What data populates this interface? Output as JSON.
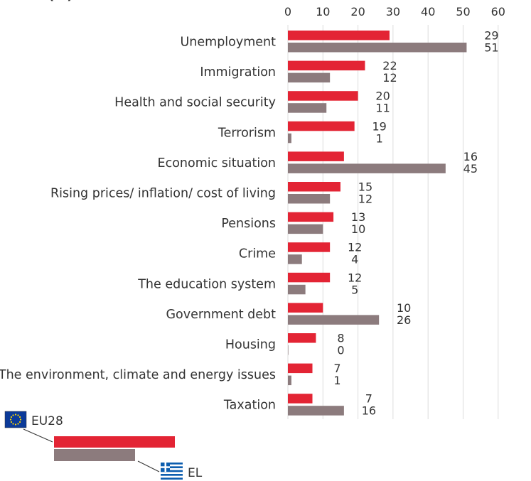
{
  "chart_data": {
    "type": "bar",
    "orientation": "horizontal",
    "header_fragment": "(%)",
    "xlim": [
      0,
      60
    ],
    "xticks": [
      0,
      10,
      20,
      30,
      40,
      50,
      60
    ],
    "grid": true,
    "categories": [
      "Unemployment",
      "Immigration",
      "Health and social security",
      "Terrorism",
      "Economic situation",
      "Rising prices/ inflation/ cost of living",
      "Pensions",
      "Crime",
      "The education system",
      "Government debt",
      "Housing",
      "The environment, climate and energy issues",
      "Taxation"
    ],
    "series": [
      {
        "name": "EU28",
        "color": "#e32434",
        "values": [
          29,
          22,
          20,
          19,
          16,
          15,
          13,
          12,
          12,
          10,
          8,
          7,
          7
        ]
      },
      {
        "name": "EL",
        "color": "#8c7b7d",
        "values": [
          51,
          12,
          11,
          1,
          45,
          12,
          10,
          4,
          5,
          26,
          0,
          1,
          16
        ]
      }
    ],
    "legend": {
      "placement": "bottom-left",
      "eu_label": "EU28",
      "el_label": "EL",
      "eu_icon": "eu-flag-icon",
      "el_icon": "greece-flag-icon"
    }
  }
}
